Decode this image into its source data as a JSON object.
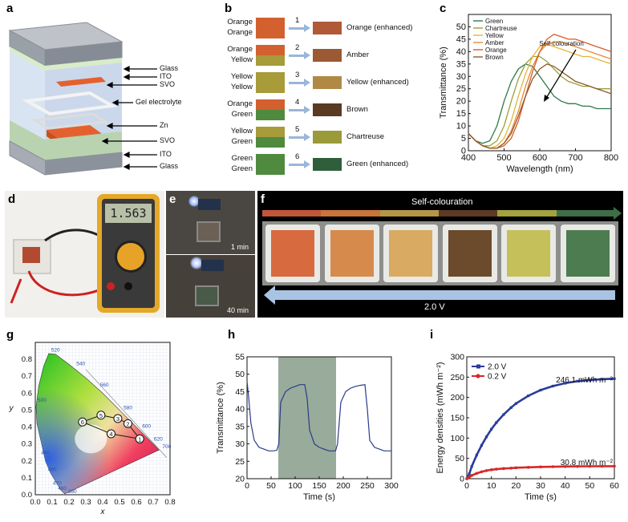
{
  "labels": {
    "a": "a",
    "b": "b",
    "c": "c",
    "d": "d",
    "e": "e",
    "f": "f",
    "g": "g",
    "h": "h",
    "i": "i"
  },
  "panel_a": {
    "layers": [
      "Glass",
      "ITO",
      "SVO",
      "Gel electrolyte",
      "Zn",
      "SVO",
      "ITO",
      "Glass"
    ]
  },
  "panel_b": {
    "rows": [
      {
        "num": "1",
        "top": "Orange",
        "bottom": "Orange",
        "result": "Orange (enhanced)",
        "c_top": "#d3602f",
        "c_bot": "#d3602f",
        "c_res": "#b15a38"
      },
      {
        "num": "2",
        "top": "Orange",
        "bottom": "Yellow",
        "result": "Amber",
        "c_top": "#d3602f",
        "c_bot": "#a79b3a",
        "c_res": "#9a5a33"
      },
      {
        "num": "3",
        "top": "Yellow",
        "bottom": "Yellow",
        "result": "Yellow (enhanced)",
        "c_top": "#a79b3a",
        "c_bot": "#a79b3a",
        "c_res": "#b08a45"
      },
      {
        "num": "4",
        "top": "Orange",
        "bottom": "Green",
        "result": "Brown",
        "c_top": "#d3602f",
        "c_bot": "#4f8a3f",
        "c_res": "#5a3a22"
      },
      {
        "num": "5",
        "top": "Yellow",
        "bottom": "Green",
        "result": "Chartreuse",
        "c_top": "#a79b3a",
        "c_bot": "#4f8a3f",
        "c_res": "#9a9a3a"
      },
      {
        "num": "6",
        "top": "Green",
        "bottom": "Green",
        "result": "Green (enhanced)",
        "c_top": "#4f8a3f",
        "c_bot": "#4f8a3f",
        "c_res": "#2f5e3a"
      }
    ]
  },
  "panel_d": {
    "meter_reading": "1.563"
  },
  "panel_e": {
    "top_label": "1 min",
    "bottom_label": "40 min"
  },
  "panel_f": {
    "top_label": "Self-colouration",
    "bottom_label": "2.0 V",
    "bar_colors": [
      "#c2563a",
      "#c8743a",
      "#b59648",
      "#5b3b24",
      "#a3a23e",
      "#3d6e48"
    ],
    "device_colors": [
      "#d86a40",
      "#d68a4c",
      "#d9aa62",
      "#6c4a2c",
      "#c6c05a",
      "#4d7c50"
    ]
  },
  "chart_data": [
    {
      "id": "c",
      "type": "line",
      "xlabel": "Wavelength (nm)",
      "ylabel": "Transmittance (%)",
      "xlim": [
        400,
        800
      ],
      "ylim": [
        0,
        55
      ],
      "xticks": [
        400,
        500,
        600,
        700,
        800
      ],
      "yticks": [
        0,
        5,
        10,
        15,
        20,
        25,
        30,
        35,
        40,
        45,
        50
      ],
      "annotation": "Self-colouration",
      "legend_position": "top-left",
      "series": [
        {
          "name": "Green",
          "color": "#2e7a4a",
          "x": [
            400,
            420,
            440,
            460,
            480,
            500,
            520,
            540,
            560,
            580,
            600,
            620,
            640,
            660,
            680,
            700,
            720,
            740,
            760,
            780,
            800
          ],
          "y": [
            7,
            4,
            3,
            4,
            10,
            20,
            28,
            33,
            35,
            34,
            30,
            26,
            22,
            20,
            19,
            19,
            18,
            18,
            17,
            17,
            17
          ]
        },
        {
          "name": "Chartreuse",
          "color": "#9aa03a",
          "x": [
            400,
            420,
            440,
            460,
            480,
            500,
            520,
            540,
            560,
            580,
            600,
            620,
            640,
            660,
            680,
            700,
            720,
            740,
            760,
            780,
            800
          ],
          "y": [
            7,
            4,
            2,
            2,
            4,
            10,
            20,
            29,
            35,
            38,
            38,
            36,
            33,
            30,
            28,
            27,
            26,
            26,
            25,
            25,
            25
          ]
        },
        {
          "name": "Yellow",
          "color": "#e8b43a",
          "x": [
            400,
            420,
            440,
            460,
            480,
            500,
            520,
            540,
            560,
            580,
            600,
            620,
            640,
            660,
            680,
            700,
            720,
            740,
            760,
            780,
            800
          ],
          "y": [
            7,
            4,
            2,
            1,
            2,
            5,
            12,
            22,
            31,
            38,
            42,
            43,
            42,
            41,
            40,
            39,
            38,
            38,
            37,
            36,
            35
          ]
        },
        {
          "name": "Amber",
          "color": "#e88a3a",
          "x": [
            400,
            420,
            440,
            460,
            480,
            500,
            520,
            540,
            560,
            580,
            600,
            620,
            640,
            660,
            680,
            700,
            720,
            740,
            760,
            780,
            800
          ],
          "y": [
            7,
            4,
            2,
            1,
            1,
            3,
            8,
            16,
            26,
            34,
            40,
            43,
            44,
            44,
            43,
            42,
            41,
            40,
            39,
            38,
            37
          ]
        },
        {
          "name": "Orange",
          "color": "#d85a2a",
          "x": [
            400,
            420,
            440,
            460,
            480,
            500,
            520,
            540,
            560,
            580,
            600,
            620,
            640,
            660,
            680,
            700,
            720,
            740,
            760,
            780,
            800
          ],
          "y": [
            7,
            4,
            2,
            1,
            1,
            2,
            5,
            12,
            22,
            32,
            40,
            45,
            47,
            46,
            45,
            45,
            44,
            43,
            42,
            41,
            40
          ]
        },
        {
          "name": "Brown",
          "color": "#8a5a2a",
          "x": [
            400,
            420,
            440,
            460,
            480,
            500,
            520,
            540,
            560,
            580,
            600,
            620,
            640,
            660,
            680,
            700,
            720,
            740,
            760,
            780,
            800
          ],
          "y": [
            7,
            4,
            2,
            1,
            1,
            3,
            7,
            14,
            22,
            29,
            33,
            35,
            34,
            32,
            30,
            28,
            27,
            26,
            25,
            24,
            23
          ]
        }
      ]
    },
    {
      "id": "g",
      "type": "scatter",
      "xlabel": "x",
      "ylabel": "y",
      "xlim": [
        0,
        0.8
      ],
      "ylim": [
        0,
        0.9
      ],
      "xticks": [
        0.0,
        0.1,
        0.2,
        0.3,
        0.4,
        0.5,
        0.6,
        0.7,
        0.8
      ],
      "yticks": [
        0.0,
        0.1,
        0.2,
        0.3,
        0.4,
        0.5,
        0.6,
        0.7,
        0.8
      ],
      "locus_labels": [
        {
          "text": "520",
          "x": 0.08,
          "y": 0.835
        },
        {
          "text": "540",
          "x": 0.23,
          "y": 0.755
        },
        {
          "text": "560",
          "x": 0.37,
          "y": 0.63
        },
        {
          "text": "580",
          "x": 0.51,
          "y": 0.495
        },
        {
          "text": "600",
          "x": 0.62,
          "y": 0.385
        },
        {
          "text": "620",
          "x": 0.69,
          "y": 0.31
        },
        {
          "text": "700",
          "x": 0.74,
          "y": 0.265
        },
        {
          "text": "500",
          "x": 0.0,
          "y": 0.54
        },
        {
          "text": "490",
          "x": 0.02,
          "y": 0.23
        },
        {
          "text": "480",
          "x": 0.06,
          "y": 0.13
        },
        {
          "text": "470",
          "x": 0.09,
          "y": 0.05
        },
        {
          "text": "460",
          "x": 0.12,
          "y": 0.02
        },
        {
          "text": "380",
          "x": 0.18,
          "y": 0.0
        }
      ],
      "points": [
        {
          "label": "1",
          "x": 0.62,
          "y": 0.33
        },
        {
          "label": "2",
          "x": 0.55,
          "y": 0.42
        },
        {
          "label": "3",
          "x": 0.49,
          "y": 0.45
        },
        {
          "label": "4",
          "x": 0.45,
          "y": 0.36
        },
        {
          "label": "5",
          "x": 0.39,
          "y": 0.47
        },
        {
          "label": "6",
          "x": 0.28,
          "y": 0.43
        }
      ]
    },
    {
      "id": "h",
      "type": "line",
      "xlabel": "Time (s)",
      "ylabel": "Transmittance (%)",
      "xlim": [
        0,
        300
      ],
      "ylim": [
        20,
        55
      ],
      "xticks": [
        0,
        50,
        100,
        150,
        200,
        250,
        300
      ],
      "yticks": [
        20,
        25,
        30,
        35,
        40,
        45,
        50,
        55
      ],
      "shaded_range": [
        65,
        185
      ],
      "series": [
        {
          "name": "",
          "color": "#2b3b8a",
          "x": [
            0,
            3,
            8,
            15,
            25,
            35,
            45,
            55,
            62,
            66,
            70,
            80,
            90,
            100,
            110,
            120,
            125,
            130,
            140,
            150,
            160,
            170,
            180,
            184,
            188,
            195,
            205,
            215,
            225,
            235,
            245,
            250,
            255,
            265,
            275,
            285,
            295,
            300
          ],
          "y": [
            48,
            44,
            36,
            31,
            29,
            28.5,
            28,
            28,
            28.2,
            30,
            42,
            45,
            46,
            46.5,
            47,
            47,
            43,
            34,
            30,
            29,
            28.5,
            28,
            28,
            28,
            30,
            42,
            45,
            46,
            46.5,
            46.8,
            47,
            40,
            31,
            29,
            28.5,
            28,
            28,
            28
          ]
        }
      ]
    },
    {
      "id": "i",
      "type": "line",
      "xlabel": "Time (s)",
      "ylabel": "Energy densities (mWh m⁻²)",
      "xlim": [
        0,
        60
      ],
      "ylim": [
        0,
        300
      ],
      "xticks": [
        0,
        10,
        20,
        30,
        40,
        50,
        60
      ],
      "yticks": [
        0,
        50,
        100,
        150,
        200,
        250,
        300
      ],
      "legend_position": "top-left",
      "annotations": [
        "246.1 mWh m⁻²",
        "30.8 mWh m⁻²"
      ],
      "series": [
        {
          "name": "2.0 V",
          "color": "#2b3b9a",
          "x": [
            0,
            1,
            2,
            4,
            6,
            8,
            10,
            12,
            15,
            18,
            20,
            25,
            30,
            35,
            40,
            45,
            50,
            55,
            60
          ],
          "y": [
            0,
            12,
            30,
            58,
            82,
            103,
            122,
            138,
            158,
            175,
            185,
            204,
            218,
            228,
            235,
            240,
            243,
            245,
            246.1
          ]
        },
        {
          "name": "0.2 V",
          "color": "#d62828",
          "x": [
            0,
            1,
            2,
            4,
            6,
            8,
            10,
            12,
            15,
            18,
            20,
            25,
            30,
            35,
            40,
            45,
            50,
            55,
            60
          ],
          "y": [
            0,
            4,
            8,
            13,
            17,
            20,
            22,
            23.5,
            25,
            26,
            27,
            28,
            29,
            29.5,
            30,
            30.3,
            30.5,
            30.7,
            30.8
          ]
        }
      ]
    }
  ]
}
